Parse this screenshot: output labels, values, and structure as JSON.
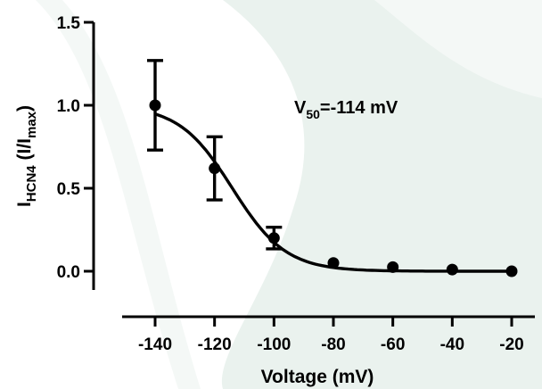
{
  "chart_data": {
    "type": "scatter",
    "xlabel": "Voltage (mV)",
    "ylabel": {
      "main": "I",
      "sub": "HCN4",
      "open": " (I/I",
      "sub2": "max",
      "close": ")"
    },
    "xlim": [
      -140,
      -20
    ],
    "ylim": [
      0,
      1.5
    ],
    "xticks": [
      -140,
      -120,
      -100,
      -80,
      -60,
      -40,
      -20
    ],
    "xtick_labels": [
      "-140",
      "-120",
      "-100",
      "-80",
      "-60",
      "-40",
      "-20"
    ],
    "yticks": [
      0,
      0.5,
      1.0,
      1.5
    ],
    "ytick_labels": [
      "0.0",
      "0.5",
      "1.0",
      "1.5"
    ],
    "points": [
      {
        "x": -140,
        "y": 1.0,
        "err": 0.27
      },
      {
        "x": -120,
        "y": 0.62,
        "err": 0.19
      },
      {
        "x": -100,
        "y": 0.2,
        "err": 0.065
      },
      {
        "x": -80,
        "y": 0.05,
        "err": 0
      },
      {
        "x": -60,
        "y": 0.025,
        "err": 0
      },
      {
        "x": -40,
        "y": 0.01,
        "err": 0
      },
      {
        "x": -20,
        "y": 0.0,
        "err": 0
      }
    ],
    "fit": {
      "type": "boltzmann",
      "v50": -114,
      "k": 9
    },
    "annotation": {
      "main": "V",
      "sub": "50",
      "rest": "=-114 mV"
    },
    "grid": false,
    "legend": "none"
  }
}
